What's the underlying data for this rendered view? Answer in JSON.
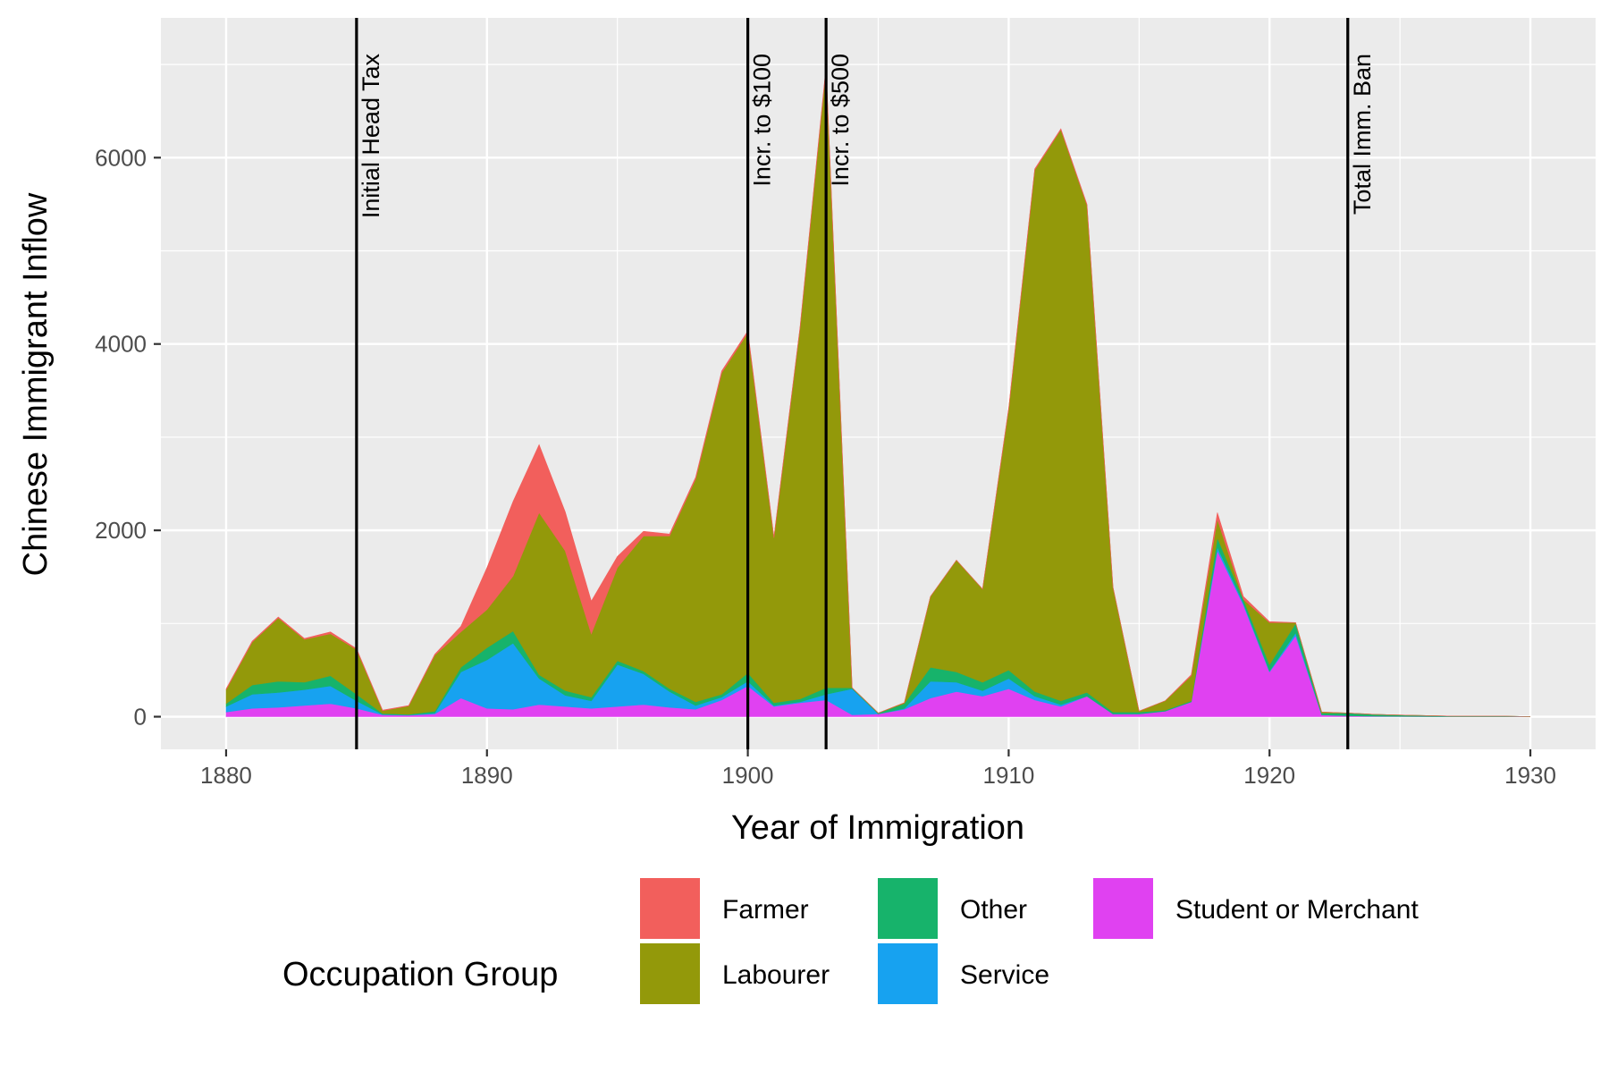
{
  "chart_data": {
    "type": "area",
    "stacked": true,
    "title": "",
    "xlabel": "Year of Immigration",
    "ylabel": "Chinese Immigrant Inflow",
    "xlim": [
      1877.5,
      1932.5
    ],
    "ylim": [
      -350,
      7500
    ],
    "x_ticks": [
      1880,
      1890,
      1900,
      1910,
      1920,
      1930
    ],
    "y_ticks": [
      0,
      2000,
      4000,
      6000
    ],
    "x_tick_labels": [
      "1880",
      "1890",
      "1900",
      "1910",
      "1920",
      "1930"
    ],
    "y_tick_labels": [
      "0",
      "2000",
      "4000",
      "6000"
    ],
    "grid": true,
    "legend_position": "bottom",
    "legend_title": "Occupation Group",
    "x": [
      1880,
      1881,
      1882,
      1883,
      1884,
      1885,
      1886,
      1887,
      1888,
      1889,
      1890,
      1891,
      1892,
      1893,
      1894,
      1895,
      1896,
      1897,
      1898,
      1899,
      1900,
      1901,
      1902,
      1903,
      1904,
      1905,
      1906,
      1907,
      1908,
      1909,
      1910,
      1911,
      1912,
      1913,
      1914,
      1915,
      1916,
      1917,
      1918,
      1919,
      1920,
      1921,
      1922,
      1923,
      1924,
      1925,
      1926,
      1927,
      1928,
      1929,
      1930
    ],
    "series": [
      {
        "name": "Student or Merchant",
        "color": "#E041F1",
        "values": [
          50,
          90,
          100,
          120,
          140,
          90,
          20,
          15,
          30,
          200,
          90,
          80,
          130,
          110,
          90,
          110,
          130,
          100,
          80,
          180,
          330,
          110,
          150,
          180,
          20,
          30,
          80,
          200,
          270,
          220,
          300,
          180,
          110,
          220,
          30,
          30,
          60,
          160,
          1780,
          1200,
          480,
          870,
          20,
          10,
          5,
          3,
          2,
          1,
          1,
          1,
          0
        ]
      },
      {
        "name": "Service",
        "color": "#17A2F0",
        "values": [
          60,
          150,
          160,
          170,
          190,
          80,
          5,
          5,
          10,
          280,
          520,
          710,
          280,
          120,
          80,
          450,
          330,
          170,
          40,
          30,
          50,
          10,
          10,
          60,
          280,
          0,
          10,
          180,
          100,
          60,
          110,
          40,
          20,
          0,
          0,
          0,
          0,
          0,
          40,
          20,
          10,
          30,
          0,
          0,
          0,
          0,
          0,
          0,
          0,
          0,
          0
        ]
      },
      {
        "name": "Other",
        "color": "#17B36B",
        "values": [
          30,
          100,
          120,
          80,
          110,
          70,
          10,
          5,
          20,
          50,
          130,
          130,
          40,
          50,
          40,
          40,
          30,
          30,
          40,
          30,
          90,
          30,
          30,
          70,
          10,
          10,
          50,
          150,
          110,
          90,
          90,
          50,
          40,
          40,
          20,
          20,
          10,
          10,
          100,
          40,
          70,
          100,
          20,
          30,
          20,
          15,
          10,
          5,
          5,
          5,
          0
        ]
      },
      {
        "name": "Labourer",
        "color": "#93990A",
        "values": [
          150,
          460,
          680,
          460,
          450,
          480,
          30,
          90,
          600,
          380,
          410,
          590,
          1740,
          1500,
          680,
          1000,
          1450,
          1640,
          2390,
          3450,
          3650,
          1770,
          3980,
          6650,
          0,
          0,
          10,
          760,
          1200,
          1000,
          2800,
          5600,
          6130,
          5230,
          1340,
          10,
          100,
          270,
          200,
          0,
          450,
          10,
          10,
          0,
          0,
          0,
          0,
          0,
          0,
          0,
          0
        ]
      },
      {
        "name": "Farmer",
        "color": "#F25F5C",
        "values": [
          10,
          10,
          10,
          10,
          20,
          10,
          5,
          5,
          10,
          60,
          450,
          800,
          730,
          420,
          350,
          120,
          50,
          20,
          20,
          20,
          20,
          10,
          10,
          20,
          0,
          0,
          0,
          0,
          0,
          0,
          10,
          10,
          10,
          10,
          0,
          0,
          0,
          10,
          70,
          30,
          10,
          0,
          0,
          0,
          0,
          0,
          0,
          0,
          0,
          0,
          0
        ]
      }
    ],
    "vlines": [
      {
        "x": 1885,
        "label": "Initial Head Tax"
      },
      {
        "x": 1900,
        "label": "Incr. to $100"
      },
      {
        "x": 1903,
        "label": "Incr. to $500"
      },
      {
        "x": 1923,
        "label": "Total Imm. Ban"
      }
    ],
    "legend_order": [
      "Farmer",
      "Labourer",
      "Other",
      "Service",
      "Student or Merchant"
    ]
  }
}
